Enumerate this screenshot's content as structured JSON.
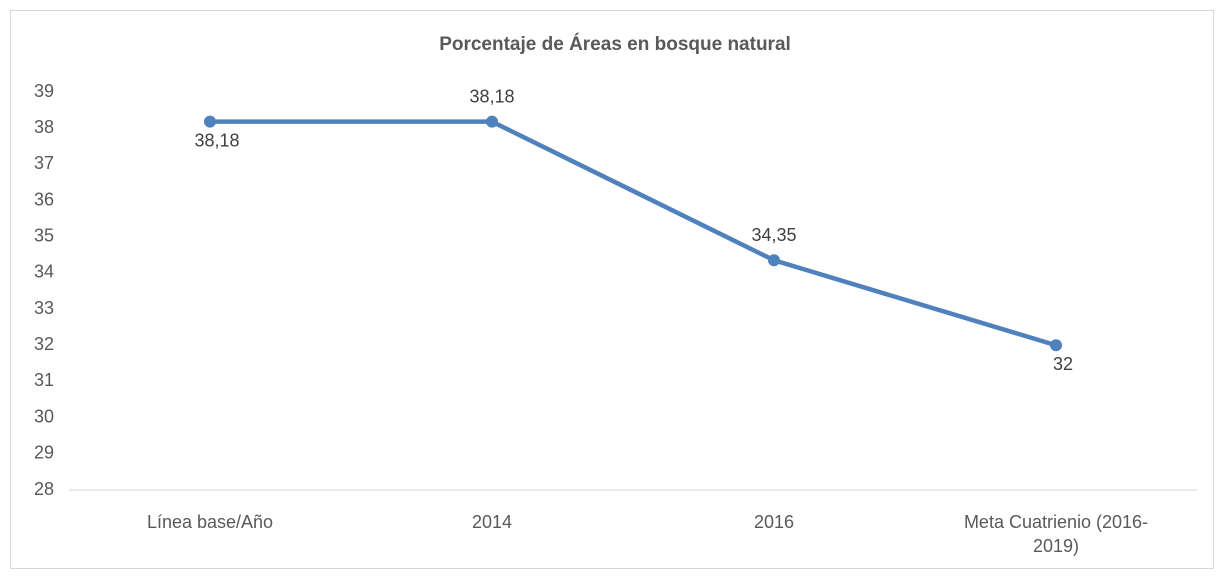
{
  "chart_data": {
    "type": "line",
    "title": "Porcentaje de Áreas en bosque natural",
    "categories": [
      "Línea base/Año",
      "2014",
      "2016",
      "Meta Cuatrienio (2016-2019)"
    ],
    "series": [
      {
        "name": "Porcentaje",
        "color": "#4f81bd",
        "values": [
          38.18,
          38.18,
          34.35,
          32
        ],
        "value_labels": [
          "38,18",
          "38,18",
          "34,35",
          "32"
        ]
      }
    ],
    "ylim": [
      28,
      39
    ],
    "yticks": [
      28,
      29,
      30,
      31,
      32,
      33,
      34,
      35,
      36,
      37,
      38,
      39
    ]
  }
}
